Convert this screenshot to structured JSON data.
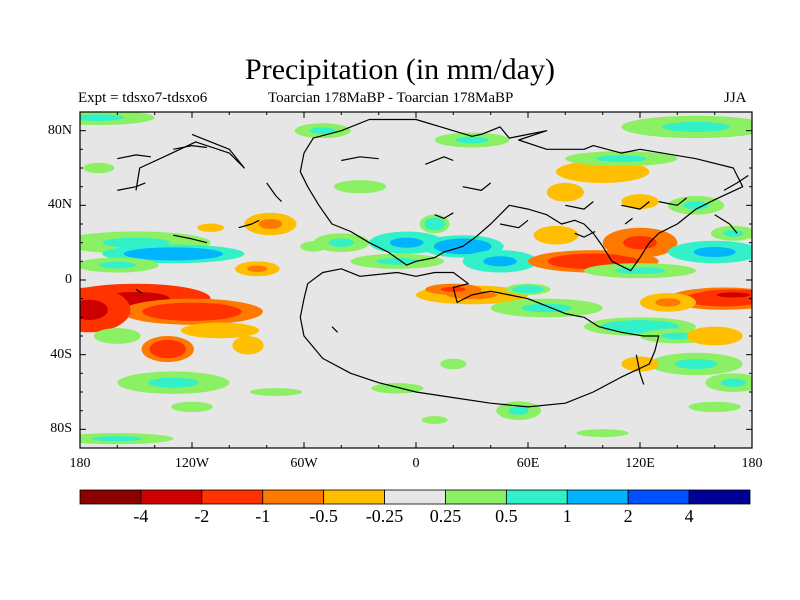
{
  "title": "Precipitation (in mm/day)",
  "subtitle_left": "Expt = tdsxo7-tdsxo6",
  "subtitle_center": "Toarcian 178MaBP - Toarcian 178MaBP",
  "subtitle_right": "JJA",
  "chart_data": {
    "type": "heatmap",
    "title": "Precipitation (in mm/day)",
    "subtitle": "Toarcian 178MaBP - Toarcian 178MaBP",
    "experiment": "Expt = tdsxo7-tdsxo6",
    "season": "JJA",
    "units": "mm/day",
    "xlim": [
      -180,
      180
    ],
    "ylim": [
      -90,
      90
    ],
    "x_ticks": [
      {
        "value": -180,
        "label": "180"
      },
      {
        "value": -120,
        "label": "120W"
      },
      {
        "value": -60,
        "label": "60W"
      },
      {
        "value": 0,
        "label": "0"
      },
      {
        "value": 60,
        "label": "60E"
      },
      {
        "value": 120,
        "label": "120E"
      },
      {
        "value": 180,
        "label": "180"
      }
    ],
    "y_ticks": [
      {
        "value": 80,
        "label": "80N"
      },
      {
        "value": 40,
        "label": "40N"
      },
      {
        "value": 0,
        "label": "0"
      },
      {
        "value": -40,
        "label": "40S"
      },
      {
        "value": -80,
        "label": "80S"
      }
    ],
    "levels": [
      -4,
      -2,
      -1,
      -0.5,
      -0.25,
      0.25,
      0.5,
      1,
      2,
      4
    ],
    "level_labels": [
      "-4",
      "-2",
      "-1",
      "-0.5",
      "-0.25",
      "0.25",
      "0.5",
      "1",
      "2",
      "4"
    ],
    "colors": [
      "#8b0000",
      "#cd0000",
      "#ff3200",
      "#ff7800",
      "#ffbe00",
      "#e6e6e6",
      "#8cf064",
      "#32f0c8",
      "#00b4ff",
      "#0050ff",
      "#000096"
    ],
    "coastline_color": "#000000",
    "anomaly_regions": [
      {
        "lon": -150,
        "lat": -10,
        "dlon": 40,
        "dlat": 8,
        "value": -2.5
      },
      {
        "lon": -120,
        "lat": -17,
        "dlon": 38,
        "dlat": 7,
        "value": -1.6
      },
      {
        "lon": -175,
        "lat": -16,
        "dlon": 22,
        "dlat": 12,
        "value": -2.2
      },
      {
        "lon": -105,
        "lat": -27,
        "dlon": 30,
        "dlat": 6,
        "value": -0.4
      },
      {
        "lon": -133,
        "lat": -37,
        "dlon": 14,
        "dlat": 7,
        "value": -1.5
      },
      {
        "lon": -160,
        "lat": -30,
        "dlon": 18,
        "dlat": 6,
        "value": 0.4
      },
      {
        "lon": -90,
        "lat": -35,
        "dlon": 12,
        "dlat": 7,
        "value": -0.4
      },
      {
        "lon": -150,
        "lat": 20,
        "dlon": 40,
        "dlat": 6,
        "value": 0.6
      },
      {
        "lon": -130,
        "lat": 14,
        "dlon": 38,
        "dlat": 5,
        "value": 1.3
      },
      {
        "lon": -160,
        "lat": 8,
        "dlon": 22,
        "dlat": 4,
        "value": 0.6
      },
      {
        "lon": -85,
        "lat": 6,
        "dlon": 12,
        "dlat": 4,
        "value": -0.6
      },
      {
        "lon": -78,
        "lat": 30,
        "dlon": 14,
        "dlat": 6,
        "value": -0.6
      },
      {
        "lon": -110,
        "lat": 28,
        "dlon": 16,
        "dlat": 5,
        "value": -0.3
      },
      {
        "lon": -55,
        "lat": 18,
        "dlon": 10,
        "dlat": 4,
        "value": 0.4
      },
      {
        "lon": -170,
        "lat": 60,
        "dlon": 12,
        "dlat": 4,
        "value": 0.4
      },
      {
        "lon": -170,
        "lat": 87,
        "dlon": 30,
        "dlat": 4,
        "value": 0.5
      },
      {
        "lon": -130,
        "lat": -55,
        "dlon": 30,
        "dlat": 6,
        "value": 0.5
      },
      {
        "lon": -120,
        "lat": -68,
        "dlon": 16,
        "dlat": 4,
        "value": 0.4
      },
      {
        "lon": -160,
        "lat": -85,
        "dlon": 30,
        "dlat": 3,
        "value": 0.5
      },
      {
        "lon": -40,
        "lat": 20,
        "dlon": 15,
        "dlat": 5,
        "value": 0.6
      },
      {
        "lon": -5,
        "lat": 20,
        "dlon": 20,
        "dlat": 6,
        "value": 1.2
      },
      {
        "lon": 25,
        "lat": 18,
        "dlon": 22,
        "dlat": 6,
        "value": 1.5
      },
      {
        "lon": 10,
        "lat": 30,
        "dlon": 8,
        "dlat": 5,
        "value": 0.8
      },
      {
        "lon": 45,
        "lat": 10,
        "dlon": 20,
        "dlat": 6,
        "value": 1.0
      },
      {
        "lon": -10,
        "lat": 10,
        "dlon": 25,
        "dlat": 4,
        "value": 0.5
      },
      {
        "lon": 75,
        "lat": 24,
        "dlon": 12,
        "dlat": 5,
        "value": -0.5
      },
      {
        "lon": 95,
        "lat": 10,
        "dlon": 35,
        "dlat": 6,
        "value": -1.3
      },
      {
        "lon": 120,
        "lat": 20,
        "dlon": 20,
        "dlat": 8,
        "value": -1.2
      },
      {
        "lon": 120,
        "lat": 5,
        "dlon": 30,
        "dlat": 4,
        "value": 0.6
      },
      {
        "lon": 160,
        "lat": 15,
        "dlon": 25,
        "dlat": 6,
        "value": 1.2
      },
      {
        "lon": 170,
        "lat": 25,
        "dlon": 12,
        "dlat": 4,
        "value": 0.5
      },
      {
        "lon": 100,
        "lat": 58,
        "dlon": 25,
        "dlat": 6,
        "value": -0.5
      },
      {
        "lon": 80,
        "lat": 47,
        "dlon": 10,
        "dlat": 5,
        "value": -0.5
      },
      {
        "lon": 120,
        "lat": 42,
        "dlon": 10,
        "dlat": 4,
        "value": -0.5
      },
      {
        "lon": 150,
        "lat": 40,
        "dlon": 15,
        "dlat": 5,
        "value": 0.5
      },
      {
        "lon": 110,
        "lat": 65,
        "dlon": 30,
        "dlat": 4,
        "value": 0.5
      },
      {
        "lon": -30,
        "lat": 50,
        "dlon": 20,
        "dlat": 5,
        "value": 0.4
      },
      {
        "lon": -50,
        "lat": 80,
        "dlon": 15,
        "dlat": 4,
        "value": 0.5
      },
      {
        "lon": 30,
        "lat": 75,
        "dlon": 20,
        "dlat": 4,
        "value": 0.5
      },
      {
        "lon": 150,
        "lat": 82,
        "dlon": 40,
        "dlat": 6,
        "value": 0.5
      },
      {
        "lon": 30,
        "lat": -8,
        "dlon": 30,
        "dlat": 5,
        "value": -0.6
      },
      {
        "lon": 20,
        "lat": -5,
        "dlon": 15,
        "dlat": 3,
        "value": -1.2
      },
      {
        "lon": 70,
        "lat": -15,
        "dlon": 30,
        "dlat": 5,
        "value": 0.5
      },
      {
        "lon": 60,
        "lat": -5,
        "dlon": 12,
        "dlat": 3,
        "value": 0.8
      },
      {
        "lon": 165,
        "lat": -10,
        "dlon": 30,
        "dlat": 6,
        "value": -1.4
      },
      {
        "lon": 170,
        "lat": -8,
        "dlon": 20,
        "dlat": 3,
        "value": -2.2
      },
      {
        "lon": 135,
        "lat": -12,
        "dlon": 15,
        "dlat": 5,
        "value": -0.6
      },
      {
        "lon": 120,
        "lat": -25,
        "dlon": 30,
        "dlat": 5,
        "value": 0.8
      },
      {
        "lon": 140,
        "lat": -30,
        "dlon": 20,
        "dlat": 4,
        "value": 0.5
      },
      {
        "lon": 160,
        "lat": -30,
        "dlon": 15,
        "dlat": 5,
        "value": -0.5
      },
      {
        "lon": 150,
        "lat": -45,
        "dlon": 25,
        "dlat": 6,
        "value": 0.5
      },
      {
        "lon": 120,
        "lat": -45,
        "dlon": 10,
        "dlat": 4,
        "value": -0.5
      },
      {
        "lon": 170,
        "lat": -55,
        "dlon": 15,
        "dlat": 5,
        "value": 0.5
      },
      {
        "lon": 160,
        "lat": -68,
        "dlon": 20,
        "dlat": 4,
        "value": 0.4
      },
      {
        "lon": 55,
        "lat": -70,
        "dlon": 12,
        "dlat": 5,
        "value": 0.5
      },
      {
        "lon": 10,
        "lat": -75,
        "dlon": 10,
        "dlat": 3,
        "value": 0.4
      },
      {
        "lon": 100,
        "lat": -82,
        "dlon": 20,
        "dlat": 3,
        "value": 0.4
      },
      {
        "lon": -10,
        "lat": -58,
        "dlon": 20,
        "dlat": 4,
        "value": 0.4
      },
      {
        "lon": 20,
        "lat": -45,
        "dlon": 10,
        "dlat": 4,
        "value": 0.4
      },
      {
        "lon": -75,
        "lat": -60,
        "dlon": 20,
        "dlat": 3,
        "value": 0.4
      }
    ],
    "coastlines": [
      [
        [
          -60,
          68
        ],
        [
          -55,
          76
        ],
        [
          -40,
          80
        ],
        [
          -25,
          86
        ],
        [
          0,
          86
        ],
        [
          20,
          80
        ],
        [
          30,
          77
        ],
        [
          35,
          78
        ],
        [
          45,
          82
        ],
        [
          50,
          76
        ],
        [
          60,
          78
        ],
        [
          70,
          80
        ],
        [
          55,
          75
        ],
        [
          70,
          70
        ],
        [
          90,
          70
        ],
        [
          95,
          72
        ],
        [
          110,
          68
        ],
        [
          120,
          70
        ],
        [
          150,
          65
        ],
        [
          170,
          60
        ],
        [
          175,
          50
        ],
        [
          160,
          43
        ],
        [
          150,
          38
        ],
        [
          140,
          30
        ],
        [
          130,
          25
        ],
        [
          125,
          20
        ],
        [
          120,
          12
        ],
        [
          115,
          5
        ],
        [
          105,
          10
        ],
        [
          100,
          18
        ],
        [
          95,
          25
        ],
        [
          90,
          30
        ],
        [
          85,
          32
        ],
        [
          78,
          30
        ],
        [
          70,
          35
        ],
        [
          60,
          38
        ],
        [
          50,
          40
        ],
        [
          45,
          35
        ],
        [
          40,
          30
        ],
        [
          32,
          23
        ],
        [
          25,
          18
        ],
        [
          15,
          15
        ],
        [
          10,
          12
        ],
        [
          0,
          10
        ],
        [
          -5,
          8
        ],
        [
          -15,
          15
        ],
        [
          -25,
          20
        ],
        [
          -35,
          26
        ],
        [
          -45,
          30
        ],
        [
          -52,
          40
        ],
        [
          -58,
          50
        ],
        [
          -62,
          58
        ],
        [
          -60,
          68
        ]
      ],
      [
        [
          -58,
          -2
        ],
        [
          -60,
          -10
        ],
        [
          -62,
          -20
        ],
        [
          -60,
          -30
        ],
        [
          -50,
          -42
        ],
        [
          -35,
          -50
        ],
        [
          -20,
          -55
        ],
        [
          0,
          -60
        ],
        [
          20,
          -63
        ],
        [
          40,
          -66
        ],
        [
          60,
          -68
        ],
        [
          80,
          -66
        ],
        [
          95,
          -60
        ],
        [
          110,
          -52
        ],
        [
          125,
          -45
        ],
        [
          128,
          -38
        ],
        [
          130,
          -30
        ],
        [
          122,
          -30
        ],
        [
          110,
          -28
        ],
        [
          98,
          -25
        ],
        [
          90,
          -20
        ],
        [
          80,
          -18
        ],
        [
          70,
          -14
        ],
        [
          60,
          -10
        ],
        [
          50,
          -8
        ],
        [
          40,
          -6
        ],
        [
          30,
          -8
        ],
        [
          22,
          -12
        ],
        [
          20,
          -4
        ],
        [
          28,
          -2
        ],
        [
          20,
          4
        ],
        [
          10,
          4
        ],
        [
          0,
          2
        ],
        [
          -10,
          4
        ],
        [
          -20,
          3
        ],
        [
          -30,
          2
        ],
        [
          -40,
          6
        ],
        [
          -50,
          4
        ],
        [
          -58,
          -2
        ]
      ],
      [
        [
          -150,
          48
        ],
        [
          -148,
          60
        ],
        [
          -135,
          66
        ],
        [
          -118,
          74
        ],
        [
          -100,
          68
        ],
        [
          -92,
          60
        ],
        [
          -100,
          70
        ],
        [
          -120,
          78
        ]
      ],
      [
        [
          -130,
          24
        ],
        [
          -120,
          22
        ],
        [
          -112,
          20
        ]
      ],
      [
        [
          -95,
          28
        ],
        [
          -88,
          30
        ],
        [
          -84,
          32
        ]
      ],
      [
        [
          -80,
          52
        ],
        [
          -75,
          45
        ],
        [
          -72,
          42
        ]
      ],
      [
        [
          -160,
          48
        ],
        [
          -150,
          50
        ],
        [
          -145,
          52
        ]
      ],
      [
        [
          -160,
          65
        ],
        [
          -150,
          67
        ],
        [
          -142,
          66
        ]
      ],
      [
        [
          -130,
          70
        ],
        [
          -120,
          72
        ],
        [
          -112,
          71
        ]
      ],
      [
        [
          -40,
          64
        ],
        [
          -30,
          66
        ],
        [
          -20,
          65
        ]
      ],
      [
        [
          5,
          62
        ],
        [
          15,
          66
        ],
        [
          20,
          64
        ]
      ],
      [
        [
          10,
          35
        ],
        [
          15,
          33
        ],
        [
          20,
          36
        ]
      ],
      [
        [
          25,
          50
        ],
        [
          35,
          48
        ],
        [
          40,
          52
        ]
      ],
      [
        [
          45,
          30
        ],
        [
          55,
          28
        ],
        [
          60,
          32
        ]
      ],
      [
        [
          80,
          40
        ],
        [
          90,
          38
        ],
        [
          95,
          42
        ]
      ],
      [
        [
          85,
          25
        ],
        [
          90,
          23
        ],
        [
          96,
          26
        ]
      ],
      [
        [
          110,
          40
        ],
        [
          120,
          38
        ],
        [
          125,
          42
        ]
      ],
      [
        [
          130,
          42
        ],
        [
          140,
          40
        ],
        [
          145,
          44
        ]
      ],
      [
        [
          160,
          35
        ],
        [
          168,
          30
        ],
        [
          172,
          25
        ]
      ],
      [
        [
          165,
          48
        ],
        [
          172,
          52
        ],
        [
          178,
          56
        ]
      ],
      [
        [
          112,
          30
        ],
        [
          116,
          33
        ]
      ],
      [
        [
          118,
          -40
        ],
        [
          120,
          -50
        ],
        [
          122,
          -56
        ]
      ],
      [
        [
          -150,
          -5
        ],
        [
          -147,
          -7
        ]
      ],
      [
        [
          -45,
          -25
        ],
        [
          -42,
          -28
        ]
      ]
    ]
  }
}
